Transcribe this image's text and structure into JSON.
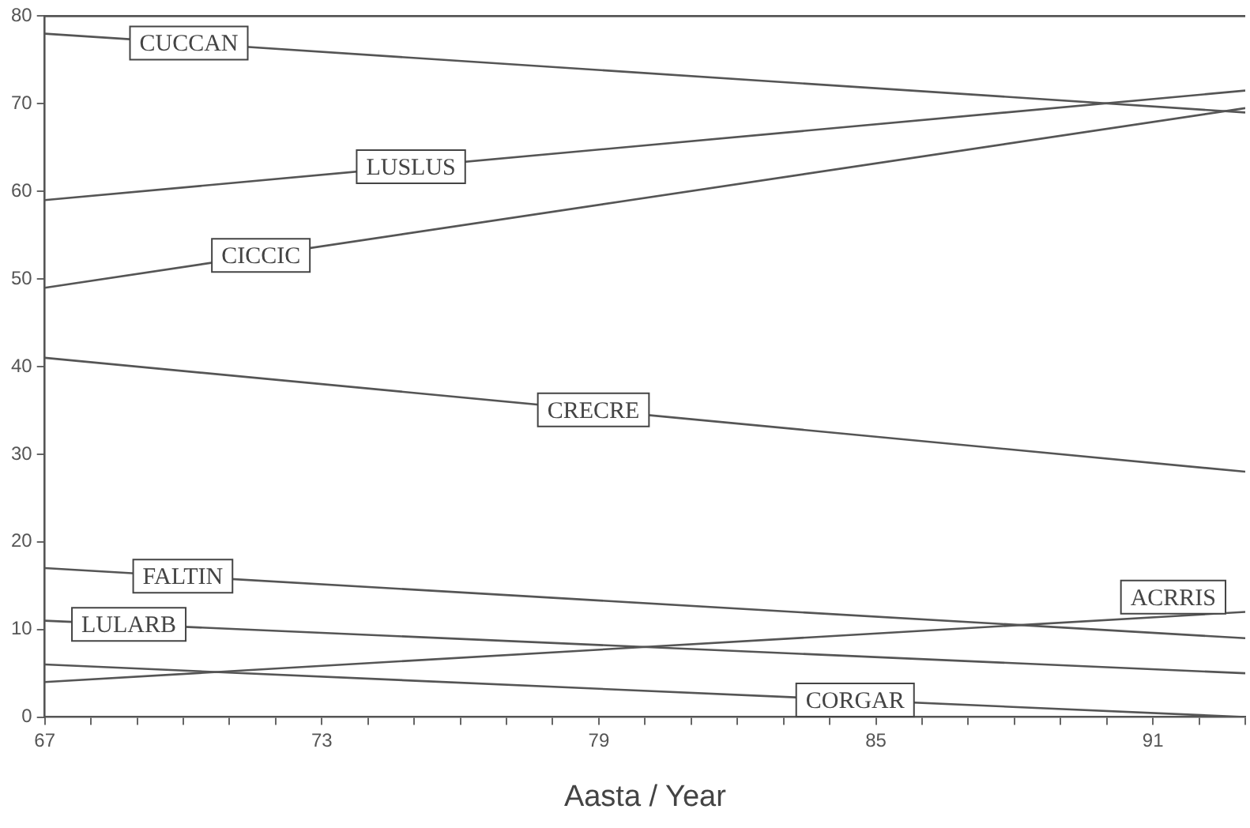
{
  "chart_data": {
    "type": "line",
    "xlabel": "Aasta / Year",
    "xlim": [
      67,
      93
    ],
    "xticks": [
      67,
      73,
      79,
      85,
      91
    ],
    "ylim": [
      0,
      80
    ],
    "yticks": [
      0,
      10,
      20,
      30,
      40,
      50,
      60,
      70,
      80
    ],
    "x": [
      67,
      93
    ],
    "grid": false,
    "legend": false,
    "marker": "none",
    "line_style": "solid",
    "series": [
      {
        "name": "CUCCAN",
        "color": "#555555",
        "values": [
          78,
          69
        ]
      },
      {
        "name": "LUSLUS",
        "color": "#555555",
        "values": [
          59,
          71.5
        ]
      },
      {
        "name": "CICCIC",
        "color": "#555555",
        "values": [
          49,
          69.5
        ]
      },
      {
        "name": "CRECRE",
        "color": "#555555",
        "values": [
          41,
          28
        ]
      },
      {
        "name": "FALTIN",
        "color": "#555555",
        "values": [
          17,
          9
        ]
      },
      {
        "name": "LULARB",
        "color": "#555555",
        "values": [
          11,
          5
        ]
      },
      {
        "name": "ACRRIS",
        "color": "#555555",
        "values": [
          4,
          12
        ]
      },
      {
        "name": "CORGAR",
        "color": "#555555",
        "values": [
          6,
          0
        ]
      }
    ]
  }
}
